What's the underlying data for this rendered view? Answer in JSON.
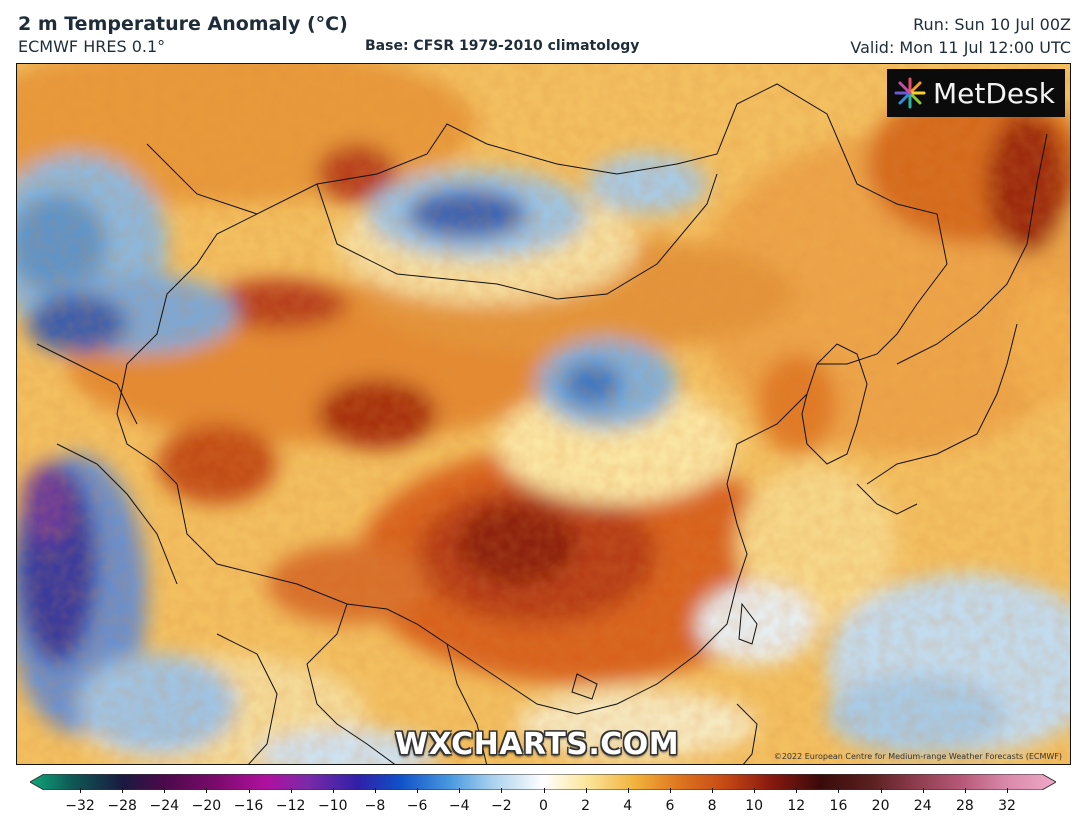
{
  "header": {
    "title": "2 m Temperature Anomaly (°C)",
    "model": "ECMWF HRES 0.1°",
    "base": "Base: CFSR 1979-2010 climatology",
    "run": "Run: Sun 10 Jul 00Z",
    "valid": "Valid: Mon 11 Jul 12:00 UTC"
  },
  "map": {
    "logo_text": "MetDesk",
    "watermark": "WXCHARTS.COM",
    "copyright": "©2022 European Centre for Medium-range Weather Forecasts (ECMWF)"
  },
  "colorbar": {
    "tick_labels": [
      "−32",
      "−28",
      "−24",
      "−20",
      "−16",
      "−12",
      "−10",
      "−8",
      "−6",
      "−4",
      "−2",
      "0",
      "2",
      "4",
      "6",
      "8",
      "10",
      "12",
      "16",
      "20",
      "24",
      "28",
      "32"
    ],
    "min_color": "#0fa87a",
    "max_color": "#f0a8c8"
  }
}
